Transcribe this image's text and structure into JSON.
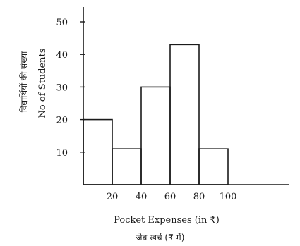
{
  "chart_data": {
    "type": "bar",
    "bins": [
      {
        "from": 0,
        "to": 20,
        "value": 20
      },
      {
        "from": 20,
        "to": 40,
        "value": 11
      },
      {
        "from": 40,
        "to": 60,
        "value": 30
      },
      {
        "from": 60,
        "to": 80,
        "value": 43
      },
      {
        "from": 80,
        "to": 100,
        "value": 11
      }
    ],
    "x_ticks": [
      "20",
      "40",
      "60",
      "80",
      "100"
    ],
    "y_ticks": [
      "10",
      "20",
      "30",
      "40",
      "50"
    ],
    "xlabel": "Pocket Expenses (in ₹)",
    "xlabel_hindi": "जेब खर्च (₹ में)",
    "ylabel": "No  of Students",
    "ylabel_hindi": "विद्यार्थियों की संख्या",
    "xlim": [
      0,
      140
    ],
    "ylim": [
      0,
      55
    ],
    "grid": false
  }
}
